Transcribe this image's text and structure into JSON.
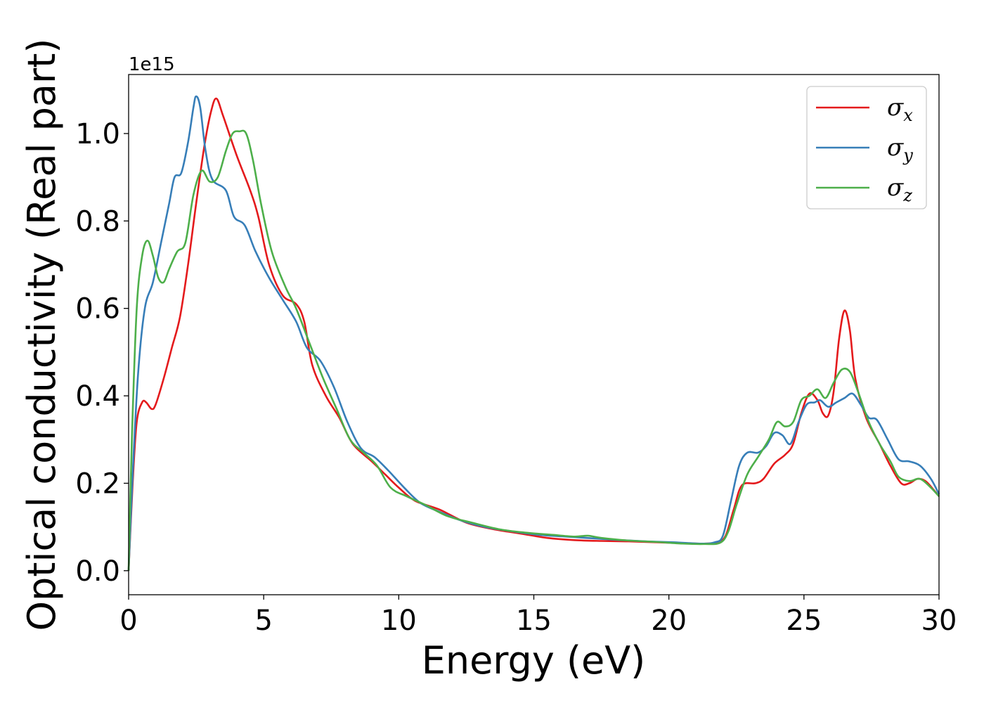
{
  "chart_data": {
    "type": "line",
    "title": "",
    "xlabel": "Energy (eV)",
    "ylabel": "Optical conductivity (Real part)",
    "y_offset_label": "1e15",
    "xlim": [
      0,
      30
    ],
    "ylim": [
      -0.055,
      1.135
    ],
    "x_ticks": [
      0,
      5,
      10,
      15,
      20,
      25,
      30
    ],
    "x_tick_labels": [
      "0",
      "5",
      "10",
      "15",
      "20",
      "25",
      "30"
    ],
    "y_ticks": [
      0.0,
      0.2,
      0.4,
      0.6,
      0.8,
      1.0
    ],
    "y_tick_labels": [
      "0.0",
      "0.2",
      "0.4",
      "0.6",
      "0.8",
      "1.0"
    ],
    "grid": false,
    "legend_position": "top-right",
    "series": [
      {
        "name": "σx",
        "legend_symbol": "σ",
        "legend_sub": "x",
        "color": "#e41a1c",
        "points": [
          [
            0,
            0
          ],
          [
            0.15,
            0.2
          ],
          [
            0.3,
            0.34
          ],
          [
            0.5,
            0.385
          ],
          [
            0.65,
            0.385
          ],
          [
            0.85,
            0.37
          ],
          [
            1.0,
            0.38
          ],
          [
            1.3,
            0.44
          ],
          [
            1.6,
            0.51
          ],
          [
            1.9,
            0.58
          ],
          [
            2.2,
            0.7
          ],
          [
            2.5,
            0.84
          ],
          [
            2.8,
            0.97
          ],
          [
            3.05,
            1.05
          ],
          [
            3.25,
            1.08
          ],
          [
            3.5,
            1.04
          ],
          [
            4.0,
            0.95
          ],
          [
            4.5,
            0.87
          ],
          [
            4.8,
            0.81
          ],
          [
            5.2,
            0.7
          ],
          [
            5.7,
            0.63
          ],
          [
            6.2,
            0.61
          ],
          [
            6.5,
            0.57
          ],
          [
            6.8,
            0.47
          ],
          [
            7.3,
            0.4
          ],
          [
            7.8,
            0.35
          ],
          [
            8.3,
            0.29
          ],
          [
            9.0,
            0.25
          ],
          [
            9.5,
            0.22
          ],
          [
            10.0,
            0.19
          ],
          [
            10.6,
            0.16
          ],
          [
            11.5,
            0.14
          ],
          [
            12.5,
            0.11
          ],
          [
            13.5,
            0.095
          ],
          [
            14.5,
            0.085
          ],
          [
            15.5,
            0.075
          ],
          [
            16.5,
            0.07
          ],
          [
            17.5,
            0.068
          ],
          [
            18.5,
            0.067
          ],
          [
            19.5,
            0.065
          ],
          [
            20.5,
            0.063
          ],
          [
            21.3,
            0.062
          ],
          [
            21.8,
            0.065
          ],
          [
            22.1,
            0.08
          ],
          [
            22.4,
            0.14
          ],
          [
            22.7,
            0.195
          ],
          [
            23.2,
            0.2
          ],
          [
            23.5,
            0.21
          ],
          [
            23.9,
            0.245
          ],
          [
            24.3,
            0.265
          ],
          [
            24.6,
            0.29
          ],
          [
            24.9,
            0.36
          ],
          [
            25.2,
            0.405
          ],
          [
            25.5,
            0.39
          ],
          [
            25.7,
            0.36
          ],
          [
            25.9,
            0.355
          ],
          [
            26.1,
            0.41
          ],
          [
            26.3,
            0.53
          ],
          [
            26.5,
            0.595
          ],
          [
            26.7,
            0.55
          ],
          [
            26.9,
            0.44
          ],
          [
            27.3,
            0.35
          ],
          [
            27.8,
            0.29
          ],
          [
            28.2,
            0.24
          ],
          [
            28.6,
            0.2
          ],
          [
            28.9,
            0.2
          ],
          [
            29.2,
            0.21
          ],
          [
            29.5,
            0.205
          ],
          [
            29.8,
            0.185
          ],
          [
            30.0,
            0.17
          ]
        ]
      },
      {
        "name": "σy",
        "legend_symbol": "σ",
        "legend_sub": "y",
        "color": "#377eb8",
        "points": [
          [
            0,
            0
          ],
          [
            0.15,
            0.22
          ],
          [
            0.35,
            0.45
          ],
          [
            0.6,
            0.6
          ],
          [
            0.9,
            0.66
          ],
          [
            1.2,
            0.75
          ],
          [
            1.5,
            0.84
          ],
          [
            1.7,
            0.9
          ],
          [
            1.95,
            0.91
          ],
          [
            2.2,
            0.98
          ],
          [
            2.4,
            1.06
          ],
          [
            2.5,
            1.085
          ],
          [
            2.65,
            1.06
          ],
          [
            2.85,
            0.96
          ],
          [
            3.1,
            0.895
          ],
          [
            3.6,
            0.87
          ],
          [
            3.9,
            0.81
          ],
          [
            4.3,
            0.79
          ],
          [
            4.7,
            0.73
          ],
          [
            5.2,
            0.67
          ],
          [
            5.7,
            0.62
          ],
          [
            6.2,
            0.57
          ],
          [
            6.6,
            0.51
          ],
          [
            7.1,
            0.48
          ],
          [
            7.6,
            0.42
          ],
          [
            8.1,
            0.34
          ],
          [
            8.6,
            0.28
          ],
          [
            9.1,
            0.26
          ],
          [
            9.6,
            0.23
          ],
          [
            10.2,
            0.19
          ],
          [
            10.8,
            0.155
          ],
          [
            11.5,
            0.135
          ],
          [
            12.3,
            0.115
          ],
          [
            13.2,
            0.1
          ],
          [
            14.2,
            0.09
          ],
          [
            15.2,
            0.082
          ],
          [
            16.2,
            0.078
          ],
          [
            17.2,
            0.074
          ],
          [
            18.2,
            0.07
          ],
          [
            19.2,
            0.067
          ],
          [
            20.2,
            0.065
          ],
          [
            21.2,
            0.062
          ],
          [
            21.7,
            0.065
          ],
          [
            22.0,
            0.08
          ],
          [
            22.3,
            0.16
          ],
          [
            22.6,
            0.24
          ],
          [
            22.9,
            0.27
          ],
          [
            23.3,
            0.27
          ],
          [
            23.6,
            0.285
          ],
          [
            23.9,
            0.315
          ],
          [
            24.2,
            0.31
          ],
          [
            24.5,
            0.29
          ],
          [
            24.8,
            0.34
          ],
          [
            25.1,
            0.38
          ],
          [
            25.4,
            0.385
          ],
          [
            25.6,
            0.39
          ],
          [
            25.9,
            0.375
          ],
          [
            26.2,
            0.385
          ],
          [
            26.5,
            0.395
          ],
          [
            26.8,
            0.405
          ],
          [
            27.1,
            0.38
          ],
          [
            27.4,
            0.35
          ],
          [
            27.7,
            0.345
          ],
          [
            28.1,
            0.3
          ],
          [
            28.5,
            0.255
          ],
          [
            28.9,
            0.25
          ],
          [
            29.3,
            0.24
          ],
          [
            29.7,
            0.21
          ],
          [
            30.0,
            0.175
          ]
        ]
      },
      {
        "name": "σz",
        "legend_symbol": "σ",
        "legend_sub": "z",
        "color": "#4daf4a",
        "points": [
          [
            0,
            0
          ],
          [
            0.12,
            0.3
          ],
          [
            0.3,
            0.6
          ],
          [
            0.5,
            0.72
          ],
          [
            0.7,
            0.755
          ],
          [
            0.9,
            0.72
          ],
          [
            1.1,
            0.67
          ],
          [
            1.3,
            0.66
          ],
          [
            1.5,
            0.69
          ],
          [
            1.8,
            0.73
          ],
          [
            2.1,
            0.75
          ],
          [
            2.4,
            0.86
          ],
          [
            2.7,
            0.915
          ],
          [
            3.0,
            0.89
          ],
          [
            3.3,
            0.9
          ],
          [
            3.6,
            0.96
          ],
          [
            3.85,
            1.0
          ],
          [
            4.1,
            1.005
          ],
          [
            4.35,
            1.0
          ],
          [
            4.6,
            0.94
          ],
          [
            4.9,
            0.84
          ],
          [
            5.3,
            0.73
          ],
          [
            5.8,
            0.65
          ],
          [
            6.2,
            0.6
          ],
          [
            6.7,
            0.52
          ],
          [
            7.2,
            0.44
          ],
          [
            7.7,
            0.37
          ],
          [
            8.2,
            0.3
          ],
          [
            8.7,
            0.27
          ],
          [
            9.2,
            0.24
          ],
          [
            9.7,
            0.19
          ],
          [
            10.3,
            0.17
          ],
          [
            11.0,
            0.15
          ],
          [
            11.8,
            0.125
          ],
          [
            12.7,
            0.11
          ],
          [
            13.7,
            0.095
          ],
          [
            14.7,
            0.087
          ],
          [
            15.7,
            0.082
          ],
          [
            16.5,
            0.078
          ],
          [
            17.0,
            0.08
          ],
          [
            17.5,
            0.075
          ],
          [
            18.5,
            0.069
          ],
          [
            19.5,
            0.066
          ],
          [
            20.5,
            0.062
          ],
          [
            21.3,
            0.061
          ],
          [
            21.9,
            0.064
          ],
          [
            22.2,
            0.09
          ],
          [
            22.5,
            0.15
          ],
          [
            22.9,
            0.22
          ],
          [
            23.3,
            0.26
          ],
          [
            23.7,
            0.3
          ],
          [
            24.0,
            0.34
          ],
          [
            24.3,
            0.33
          ],
          [
            24.6,
            0.34
          ],
          [
            24.9,
            0.39
          ],
          [
            25.2,
            0.4
          ],
          [
            25.5,
            0.415
          ],
          [
            25.8,
            0.395
          ],
          [
            26.1,
            0.43
          ],
          [
            26.4,
            0.46
          ],
          [
            26.7,
            0.455
          ],
          [
            27.0,
            0.41
          ],
          [
            27.4,
            0.34
          ],
          [
            27.8,
            0.29
          ],
          [
            28.2,
            0.25
          ],
          [
            28.5,
            0.215
          ],
          [
            28.9,
            0.205
          ],
          [
            29.3,
            0.21
          ],
          [
            29.7,
            0.19
          ],
          [
            30.0,
            0.17
          ]
        ]
      }
    ]
  }
}
